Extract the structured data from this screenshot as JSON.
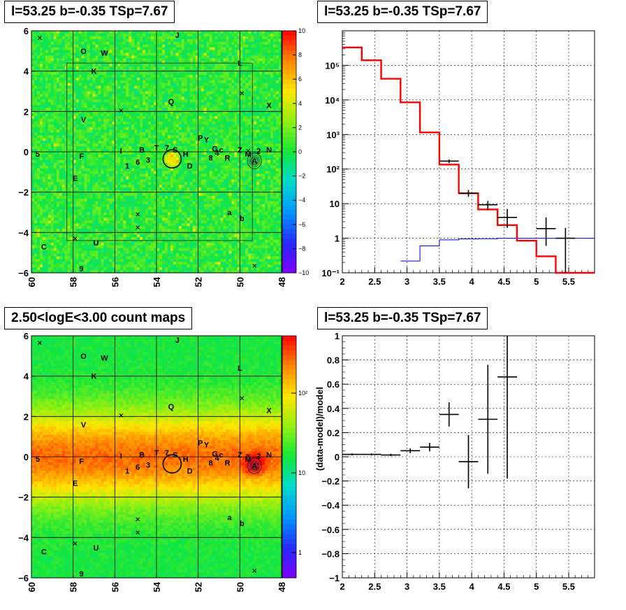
{
  "panels": {
    "tl": {
      "title": "l=53.25 b=-0.35 TSp=7.67"
    },
    "tr": {
      "title": "l=53.25 b=-0.35 TSp=7.67"
    },
    "bl": {
      "title": "2.50<logE<3.00 count maps"
    },
    "br": {
      "title": "l=53.25 b=-0.35 TSp=7.67"
    }
  },
  "colors": {
    "data": "#000000",
    "model": "#ff0000",
    "background_model": "#0000cc"
  },
  "sky_labels": [
    {
      "t": "O",
      "l": 57.5,
      "b": 5.0
    },
    {
      "t": "W",
      "l": 56.5,
      "b": 4.9
    },
    {
      "t": "J",
      "l": 53.0,
      "b": 5.8
    },
    {
      "t": "K",
      "l": 57.0,
      "b": 4.0
    },
    {
      "t": "L",
      "l": 50.0,
      "b": 4.4
    },
    {
      "t": "Q",
      "l": 53.3,
      "b": 2.5
    },
    {
      "t": "X",
      "l": 48.6,
      "b": 2.3
    },
    {
      "t": "V",
      "l": 57.5,
      "b": 1.6
    },
    {
      "t": "P",
      "l": 51.9,
      "b": 0.7
    },
    {
      "t": "Y",
      "l": 51.6,
      "b": 0.6
    },
    {
      "t": "T",
      "l": 54.0,
      "b": 0.2
    },
    {
      "t": "7",
      "l": 53.5,
      "b": 0.2
    },
    {
      "t": "S",
      "l": 53.1,
      "b": 0.1
    },
    {
      "t": "B",
      "l": 54.7,
      "b": 0.1
    },
    {
      "t": "I",
      "l": 55.7,
      "b": 0.05
    },
    {
      "t": "H",
      "l": 52.6,
      "b": -0.1
    },
    {
      "t": "G",
      "l": 51.2,
      "b": 0.15
    },
    {
      "t": "c",
      "l": 50.9,
      "b": 0.1
    },
    {
      "t": "4",
      "l": 51.1,
      "b": -0.05
    },
    {
      "t": "8",
      "l": 51.4,
      "b": -0.3
    },
    {
      "t": "R",
      "l": 50.6,
      "b": -0.3
    },
    {
      "t": "Z",
      "l": 50.0,
      "b": 0.1
    },
    {
      "t": "M",
      "l": 49.6,
      "b": -0.1
    },
    {
      "t": "2",
      "l": 49.1,
      "b": 0.05
    },
    {
      "t": "N",
      "l": 48.6,
      "b": 0.1
    },
    {
      "t": "A",
      "l": 49.3,
      "b": -0.45
    },
    {
      "t": "F",
      "l": 57.6,
      "b": -0.2
    },
    {
      "t": "5",
      "l": 59.7,
      "b": -0.1
    },
    {
      "t": "6",
      "l": 54.9,
      "b": -0.5
    },
    {
      "t": "3",
      "l": 54.4,
      "b": -0.4
    },
    {
      "t": "1",
      "l": 55.4,
      "b": -0.7
    },
    {
      "t": "D",
      "l": 52.4,
      "b": -0.7
    },
    {
      "t": "E",
      "l": 57.9,
      "b": -1.3
    },
    {
      "t": "a",
      "l": 50.5,
      "b": -3.0
    },
    {
      "t": "b",
      "l": 49.9,
      "b": -3.3
    },
    {
      "t": "C",
      "l": 59.4,
      "b": -4.7
    },
    {
      "t": "U",
      "l": 56.9,
      "b": -4.5
    },
    {
      "t": "9",
      "l": 57.6,
      "b": -5.8
    }
  ],
  "sky_crosses": [
    {
      "l": 59.6,
      "b": 5.65
    },
    {
      "l": 49.9,
      "b": 2.9
    },
    {
      "l": 55.7,
      "b": 2.05
    },
    {
      "l": 54.9,
      "b": -3.1
    },
    {
      "l": 54.9,
      "b": -3.75
    },
    {
      "l": 57.9,
      "b": -4.3
    },
    {
      "l": 49.3,
      "b": -5.65
    },
    {
      "l": 49.6,
      "b": 0.05
    }
  ],
  "roi": {
    "l_min": 49.4,
    "l_max": 58.3,
    "b_min": -4.4,
    "b_max": 4.4
  },
  "source": {
    "l": 53.25,
    "b": -0.35
  },
  "colorbar_top": [
    "10",
    "8",
    "6",
    "4",
    "2",
    "0",
    "−2",
    "−4",
    "−6",
    "−8",
    "−10"
  ],
  "colorbar_bottom": [
    "10²",
    "10",
    "1"
  ],
  "chart_data": [
    {
      "type": "heatmap",
      "title": "l=53.25 b=-0.35 TSp=7.67",
      "x_ticks": [
        "60",
        "58",
        "56",
        "54",
        "52",
        "50",
        "48"
      ],
      "y_ticks": [
        "6",
        "4",
        "2",
        "0",
        "−2",
        "−4",
        "−6"
      ],
      "xlim": [
        60,
        48
      ],
      "ylim": [
        -6,
        6
      ],
      "zlim": [
        -10,
        10
      ]
    },
    {
      "type": "line",
      "title": "l=53.25 b=-0.35 TSp=7.67",
      "x_ticks": [
        "2",
        "2.5",
        "3",
        "3.5",
        "4",
        "4.5",
        "5",
        "5.5"
      ],
      "y_ticks": [
        "10⁻¹",
        "1",
        "10",
        "10²",
        "10³",
        "10⁴",
        "10⁵"
      ],
      "xlim": [
        2.0,
        5.9
      ],
      "ylim": [
        0.1,
        1000000
      ],
      "y_scale": "log",
      "grid": true,
      "model_steps": [
        [
          2.0,
          2.3,
          330000
        ],
        [
          2.3,
          2.6,
          140000
        ],
        [
          2.6,
          2.9,
          41000
        ],
        [
          2.9,
          3.2,
          8500
        ],
        [
          3.2,
          3.5,
          1150
        ],
        [
          3.5,
          3.8,
          135
        ],
        [
          3.8,
          4.1,
          20
        ],
        [
          4.1,
          4.4,
          6.8
        ],
        [
          4.4,
          4.7,
          2.4
        ],
        [
          4.7,
          5.0,
          0.85
        ],
        [
          5.0,
          5.3,
          0.3
        ],
        [
          5.3,
          5.9,
          0.1
        ]
      ],
      "background_steps": [
        [
          2.9,
          3.2,
          0.22
        ],
        [
          3.2,
          3.5,
          0.6
        ],
        [
          3.5,
          3.8,
          0.9
        ],
        [
          3.8,
          4.1,
          0.95
        ],
        [
          4.1,
          4.4,
          0.97
        ],
        [
          4.4,
          5.9,
          1.0
        ]
      ],
      "data_points": [
        {
          "x": 3.65,
          "y": 170,
          "xerr": 0.15,
          "ylo": 150,
          "yhi": 190
        },
        {
          "x": 3.95,
          "y": 20,
          "xerr": 0.15,
          "ylo": 16,
          "yhi": 25
        },
        {
          "x": 4.25,
          "y": 9.3,
          "xerr": 0.15,
          "ylo": 6.5,
          "yhi": 12
        },
        {
          "x": 4.55,
          "y": 4,
          "xerr": 0.15,
          "ylo": 2,
          "yhi": 7
        },
        {
          "x": 5.15,
          "y": 1.9,
          "xerr": 0.15,
          "ylo": 0.6,
          "yhi": 4
        },
        {
          "x": 5.45,
          "y": 1,
          "xerr": 0.15,
          "ylo": 0.1,
          "yhi": 2
        }
      ]
    },
    {
      "type": "heatmap",
      "title": "2.50<logE<3.00 count maps",
      "x_ticks": [
        "60",
        "58",
        "56",
        "54",
        "52",
        "50",
        "48"
      ],
      "y_ticks": [
        "6",
        "4",
        "2",
        "0",
        "−2",
        "−4",
        "−6"
      ],
      "xlim": [
        60,
        48
      ],
      "ylim": [
        -6,
        6
      ],
      "zscale": "log"
    },
    {
      "type": "scatter",
      "title": "l=53.25 b=-0.35 TSp=7.67",
      "ylabel": "(data-model)/model",
      "x_ticks": [
        "2",
        "2.5",
        "3",
        "3.5",
        "4",
        "4.5",
        "5",
        "5.5"
      ],
      "y_ticks": [
        "1",
        "0.8",
        "0.6",
        "0.4",
        "0.2",
        "0",
        "−0.2",
        "−0.4",
        "−0.6",
        "−0.8",
        "−1"
      ],
      "xlim": [
        2.0,
        5.9
      ],
      "ylim": [
        -1,
        1
      ],
      "grid": true,
      "points": [
        {
          "x": 2.15,
          "y": 0.02,
          "xerr": 0.15,
          "yerr": 0.008
        },
        {
          "x": 2.45,
          "y": 0.02,
          "xerr": 0.15,
          "yerr": 0.008
        },
        {
          "x": 2.75,
          "y": 0.015,
          "xerr": 0.15,
          "yerr": 0.01
        },
        {
          "x": 3.05,
          "y": 0.05,
          "xerr": 0.15,
          "yerr": 0.02
        },
        {
          "x": 3.35,
          "y": 0.08,
          "xerr": 0.15,
          "yerr": 0.035
        },
        {
          "x": 3.65,
          "y": 0.35,
          "xerr": 0.15,
          "yerr": 0.1
        },
        {
          "x": 3.95,
          "y": -0.04,
          "xerr": 0.15,
          "yerr": 0.22
        },
        {
          "x": 4.25,
          "y": 0.31,
          "xerr": 0.15,
          "yerr": 0.45
        },
        {
          "x": 4.55,
          "y": 0.66,
          "xerr": 0.15,
          "yerr": 0.84
        }
      ]
    }
  ]
}
